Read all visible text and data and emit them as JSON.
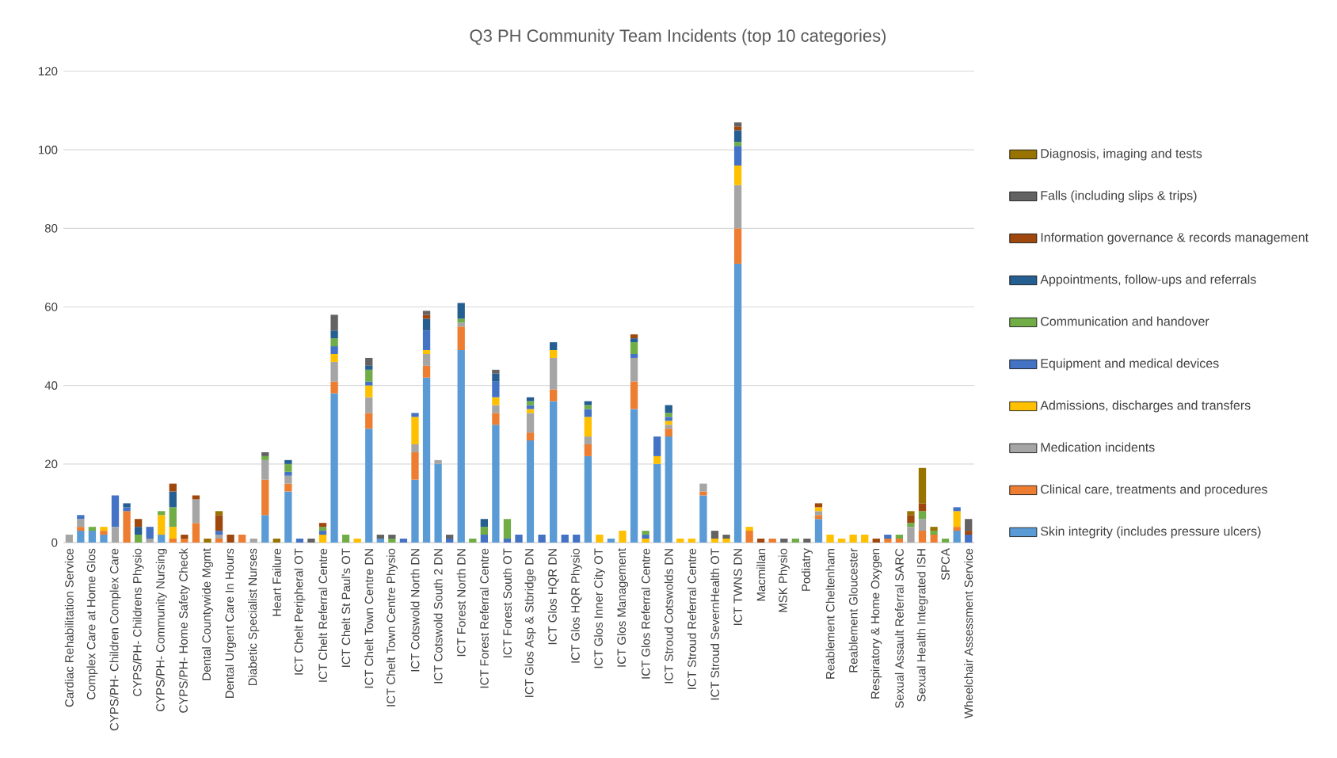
{
  "chart_data": {
    "type": "bar",
    "stacked": true,
    "title": "Q3 PH Community Team Incidents (top 10 categories)",
    "categories": [
      "Cardiac Rehabilitation Service",
      null,
      "Complex Care at Home Glos",
      null,
      "CYPS/PH- Children Complex Care",
      null,
      "CYPS/PH- Childrens Physio",
      null,
      "CYPS/PH- Community Nursing",
      null,
      "CYPS/PH- Home Safety Check",
      null,
      "Dental Countywide Mgmt",
      null,
      "Dental Urgent Care In Hours",
      null,
      "Diabetic Specialist Nurses",
      null,
      "Heart Failure",
      null,
      "ICT Chelt Peripheral OT",
      null,
      "ICT Chelt Referral Centre",
      null,
      "ICT Chelt St Paul's OT",
      null,
      "ICT Chelt Town Centre DN",
      null,
      "ICT Chelt Town Centre Physio",
      null,
      "ICT Cotswold North DN",
      null,
      "ICT Cotswold South 2 DN",
      null,
      "ICT Forest North DN",
      null,
      "ICT Forest Referral Centre",
      null,
      "ICT Forest South OT",
      null,
      "ICT Glos Asp & Stbridge DN",
      null,
      "ICT Glos HQR DN",
      null,
      "ICT Glos HQR Physio",
      null,
      "ICT Glos Inner City OT",
      null,
      "ICT Glos Management",
      null,
      "ICT Glos Referral Centre",
      null,
      "ICT Stroud Cotswolds DN",
      null,
      "ICT Stroud Referral Centre",
      null,
      "ICT Stroud SevernHealth OT",
      null,
      "ICT TWNS DN",
      null,
      "Macmillan",
      null,
      "MSK Physio",
      null,
      "Podiatry",
      null,
      "Reablement Cheltenham",
      null,
      "Reablement Gloucester",
      null,
      "Respiratory & Home Oxygen",
      null,
      "Sexual Assault Referral SARC",
      null,
      "Sexual Health Integrated ISH",
      null,
      "SPCA",
      null,
      "Wheelchair Assessment Service"
    ],
    "series": [
      {
        "name": "Skin integrity (includes pressure ulcers)",
        "color": "#5b9bd5",
        "values": [
          null,
          3,
          3,
          2,
          null,
          null,
          null,
          null,
          2,
          null,
          null,
          null,
          null,
          null,
          null,
          null,
          null,
          7,
          null,
          13,
          null,
          null,
          null,
          38,
          null,
          null,
          29,
          1,
          null,
          null,
          16,
          42,
          20,
          null,
          49,
          null,
          null,
          30,
          null,
          null,
          26,
          null,
          36,
          null,
          null,
          22,
          null,
          1,
          null,
          34,
          null,
          20,
          27,
          null,
          null,
          12,
          null,
          null,
          71,
          null,
          null,
          null,
          null,
          null,
          null,
          6,
          null,
          null,
          null,
          null,
          null,
          null,
          null,
          null,
          null,
          null,
          null,
          3,
          null
        ]
      },
      {
        "name": "Clinical care, treatments and procedures",
        "color": "#ed7d31",
        "values": [
          null,
          1,
          null,
          1,
          null,
          8,
          null,
          null,
          null,
          1,
          1,
          5,
          null,
          1,
          null,
          2,
          null,
          9,
          null,
          2,
          null,
          null,
          null,
          3,
          null,
          null,
          4,
          null,
          null,
          null,
          7,
          3,
          null,
          null,
          6,
          null,
          null,
          3,
          null,
          null,
          2,
          null,
          3,
          null,
          null,
          3,
          null,
          null,
          null,
          7,
          null,
          null,
          2,
          null,
          null,
          1,
          null,
          null,
          9,
          3,
          null,
          1,
          null,
          null,
          null,
          1,
          null,
          null,
          null,
          null,
          null,
          1,
          1,
          null,
          3,
          2,
          null,
          1,
          null
        ]
      },
      {
        "name": "Medication incidents",
        "color": "#a5a5a5",
        "values": [
          2,
          2,
          null,
          null,
          4,
          null,
          null,
          1,
          null,
          null,
          null,
          6,
          null,
          1,
          null,
          null,
          1,
          5,
          null,
          2,
          null,
          null,
          null,
          5,
          null,
          null,
          4,
          null,
          null,
          null,
          2,
          3,
          1,
          null,
          1,
          null,
          null,
          2,
          null,
          null,
          5,
          null,
          8,
          null,
          null,
          2,
          null,
          null,
          null,
          6,
          null,
          null,
          1,
          null,
          null,
          2,
          null,
          null,
          11,
          null,
          null,
          null,
          null,
          null,
          null,
          1,
          null,
          null,
          null,
          null,
          null,
          null,
          null,
          4,
          3,
          null,
          null,
          null,
          null
        ]
      },
      {
        "name": "Admissions, discharges and transfers",
        "color": "#ffc000",
        "values": [
          null,
          null,
          null,
          1,
          null,
          null,
          null,
          null,
          5,
          3,
          null,
          null,
          null,
          null,
          null,
          null,
          null,
          null,
          null,
          null,
          null,
          null,
          2,
          2,
          null,
          1,
          3,
          null,
          null,
          null,
          7,
          1,
          null,
          null,
          null,
          null,
          null,
          2,
          null,
          null,
          1,
          null,
          2,
          null,
          null,
          5,
          2,
          null,
          3,
          null,
          1,
          2,
          1,
          1,
          1,
          null,
          1,
          1,
          5,
          1,
          null,
          null,
          null,
          null,
          null,
          1,
          2,
          1,
          2,
          2,
          null,
          null,
          null,
          null,
          null,
          null,
          null,
          4,
          null
        ]
      },
      {
        "name": "Equipment and medical devices",
        "color": "#4472c4",
        "values": [
          null,
          1,
          null,
          null,
          8,
          1,
          null,
          3,
          null,
          null,
          null,
          null,
          null,
          1,
          null,
          null,
          null,
          null,
          null,
          1,
          1,
          null,
          1,
          2,
          null,
          null,
          1,
          null,
          null,
          1,
          1,
          5,
          null,
          1,
          null,
          null,
          2,
          4,
          1,
          2,
          1,
          2,
          null,
          2,
          2,
          2,
          null,
          null,
          null,
          1,
          1,
          5,
          1,
          null,
          null,
          null,
          null,
          null,
          5,
          null,
          null,
          null,
          null,
          null,
          null,
          null,
          null,
          null,
          null,
          null,
          null,
          1,
          null,
          null,
          null,
          null,
          null,
          1,
          2
        ]
      },
      {
        "name": "Communication and handover",
        "color": "#70ad47",
        "values": [
          null,
          null,
          1,
          null,
          null,
          null,
          2,
          null,
          1,
          5,
          null,
          null,
          null,
          null,
          null,
          null,
          null,
          1,
          null,
          2,
          null,
          null,
          1,
          2,
          2,
          null,
          3,
          null,
          1,
          null,
          null,
          null,
          null,
          null,
          1,
          1,
          2,
          null,
          5,
          null,
          1,
          null,
          null,
          null,
          null,
          1,
          null,
          null,
          null,
          3,
          1,
          null,
          1,
          null,
          null,
          null,
          null,
          null,
          1,
          null,
          null,
          null,
          null,
          1,
          null,
          null,
          null,
          null,
          null,
          null,
          null,
          null,
          1,
          1,
          2,
          1,
          1,
          null,
          null
        ]
      },
      {
        "name": "Appointments, follow-ups and referrals",
        "color": "#255e91",
        "values": [
          null,
          null,
          null,
          null,
          null,
          1,
          2,
          null,
          null,
          4,
          null,
          null,
          null,
          null,
          null,
          null,
          null,
          null,
          null,
          1,
          null,
          null,
          null,
          2,
          null,
          null,
          1,
          null,
          null,
          null,
          null,
          3,
          null,
          null,
          4,
          null,
          2,
          2,
          null,
          null,
          1,
          null,
          2,
          null,
          null,
          1,
          null,
          null,
          null,
          1,
          null,
          null,
          2,
          null,
          null,
          null,
          null,
          null,
          3,
          null,
          null,
          null,
          null,
          null,
          null,
          null,
          null,
          null,
          null,
          null,
          null,
          null,
          null,
          null,
          null,
          null,
          null,
          null,
          null
        ]
      },
      {
        "name": "Information governance & records management",
        "color": "#9e480e",
        "values": [
          null,
          null,
          null,
          null,
          null,
          null,
          2,
          null,
          null,
          2,
          1,
          1,
          null,
          4,
          2,
          null,
          null,
          null,
          null,
          null,
          null,
          null,
          1,
          null,
          null,
          null,
          null,
          null,
          null,
          null,
          null,
          1,
          null,
          null,
          null,
          null,
          null,
          null,
          null,
          null,
          null,
          null,
          null,
          null,
          null,
          null,
          null,
          null,
          null,
          1,
          null,
          null,
          null,
          null,
          null,
          null,
          null,
          null,
          1,
          null,
          1,
          null,
          null,
          null,
          null,
          1,
          null,
          null,
          null,
          null,
          1,
          null,
          null,
          2,
          2,
          null,
          null,
          null,
          1
        ]
      },
      {
        "name": "Falls (including slips & trips)",
        "color": "#636363",
        "values": [
          null,
          null,
          null,
          null,
          null,
          null,
          null,
          null,
          null,
          null,
          null,
          null,
          null,
          null,
          null,
          null,
          null,
          1,
          null,
          null,
          null,
          1,
          null,
          4,
          null,
          null,
          2,
          1,
          1,
          null,
          null,
          1,
          null,
          1,
          null,
          null,
          null,
          1,
          null,
          null,
          null,
          null,
          null,
          null,
          null,
          null,
          null,
          null,
          null,
          null,
          null,
          null,
          null,
          null,
          null,
          null,
          2,
          1,
          1,
          null,
          null,
          null,
          1,
          null,
          1,
          null,
          null,
          null,
          null,
          null,
          null,
          null,
          null,
          null,
          null,
          null,
          null,
          null,
          3
        ]
      },
      {
        "name": "Diagnosis, imaging and tests",
        "color": "#997300",
        "values": [
          null,
          null,
          null,
          null,
          null,
          null,
          null,
          null,
          null,
          null,
          null,
          null,
          1,
          1,
          null,
          null,
          null,
          null,
          1,
          null,
          null,
          null,
          null,
          null,
          null,
          null,
          null,
          null,
          null,
          null,
          null,
          null,
          null,
          null,
          null,
          null,
          null,
          null,
          null,
          null,
          null,
          null,
          null,
          null,
          null,
          null,
          null,
          null,
          null,
          null,
          null,
          null,
          null,
          null,
          null,
          null,
          null,
          null,
          null,
          null,
          null,
          null,
          null,
          null,
          null,
          null,
          null,
          null,
          null,
          null,
          null,
          null,
          null,
          1,
          9,
          1,
          null,
          null,
          null
        ]
      }
    ],
    "ylim": [
      0,
      120
    ],
    "yticks": [
      0,
      20,
      40,
      60,
      80,
      100,
      120
    ],
    "grid": "y",
    "legend": "right"
  }
}
